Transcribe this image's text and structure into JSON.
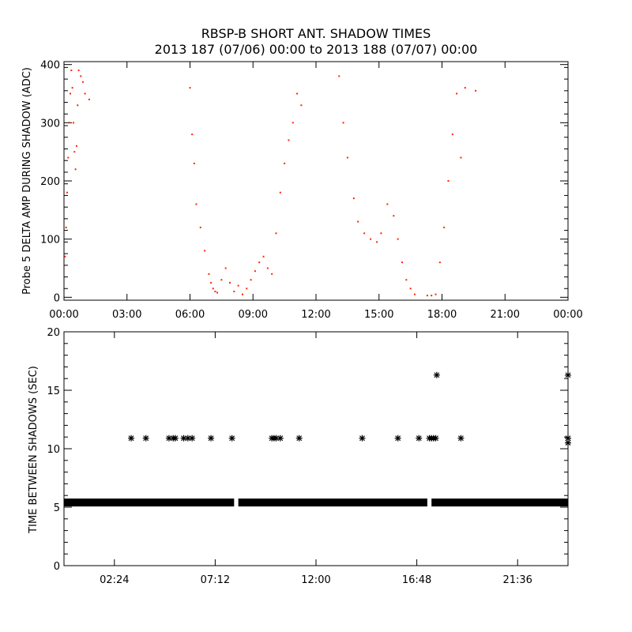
{
  "title": {
    "line1": "RBSP-B SHORT ANT. SHADOW TIMES",
    "line2": "2013 187 (07/06) 00:00 to 2013 188 (07/07) 00:00"
  },
  "colors": {
    "top_points": "#ff2200",
    "bottom_points": "#000000",
    "axes": "#000000"
  },
  "chart_data": [
    {
      "type": "scatter",
      "ylabel": "Probe 5 DELTA AMP DURING SHADOW (ADC)",
      "xlabel": "",
      "x_unit": "hours since 2013-07-06 00:00",
      "xlim": [
        0,
        24
      ],
      "ylim": [
        -5,
        405
      ],
      "x_ticks": [
        {
          "v": 0,
          "label": "00:00"
        },
        {
          "v": 3,
          "label": "03:00"
        },
        {
          "v": 6,
          "label": "06:00"
        },
        {
          "v": 9,
          "label": "09:00"
        },
        {
          "v": 12,
          "label": "12:00"
        },
        {
          "v": 15,
          "label": "15:00"
        },
        {
          "v": 18,
          "label": "18:00"
        },
        {
          "v": 21,
          "label": "21:00"
        },
        {
          "v": 24,
          "label": "00:00"
        }
      ],
      "y_ticks": [
        {
          "v": 0,
          "label": "0"
        },
        {
          "v": 100,
          "label": "100"
        },
        {
          "v": 200,
          "label": "200"
        },
        {
          "v": 300,
          "label": "300"
        },
        {
          "v": 400,
          "label": "400"
        }
      ],
      "series": [
        {
          "name": "",
          "color": "#ff2200",
          "x": [
            0.05,
            0.1,
            0.15,
            0.2,
            0.25,
            0.3,
            0.35,
            0.4,
            0.45,
            0.5,
            0.55,
            0.6,
            0.65,
            0.7,
            0.8,
            0.9,
            1.0,
            1.2,
            6.0,
            6.1,
            6.2,
            6.3,
            6.5,
            6.7,
            6.9,
            7.0,
            7.1,
            7.2,
            7.3,
            7.5,
            7.7,
            7.9,
            8.1,
            8.3,
            8.5,
            8.7,
            8.9,
            9.1,
            9.3,
            9.5,
            9.7,
            9.9,
            10.1,
            10.3,
            10.5,
            10.7,
            10.9,
            11.1,
            11.3,
            13.1,
            13.3,
            13.5,
            13.8,
            14.0,
            14.3,
            14.6,
            14.9,
            15.1,
            15.4,
            15.7,
            15.9,
            16.1,
            16.3,
            16.5,
            16.7,
            17.3,
            17.5,
            17.7,
            17.9,
            18.1,
            18.3,
            18.5,
            18.7,
            18.9,
            19.1,
            19.6
          ],
          "y": [
            70,
            120,
            180,
            240,
            300,
            350,
            390,
            360,
            300,
            250,
            220,
            260,
            330,
            390,
            380,
            370,
            350,
            340,
            360,
            280,
            230,
            160,
            120,
            80,
            40,
            25,
            15,
            10,
            8,
            30,
            50,
            25,
            10,
            20,
            5,
            15,
            30,
            45,
            60,
            70,
            50,
            40,
            110,
            180,
            230,
            270,
            300,
            350,
            330,
            380,
            300,
            240,
            170,
            130,
            110,
            100,
            95,
            110,
            160,
            140,
            100,
            60,
            30,
            15,
            5,
            3,
            3,
            5,
            60,
            120,
            200,
            280,
            350,
            240,
            360,
            355
          ]
        }
      ]
    },
    {
      "type": "scatter",
      "ylabel": "TIME BETWEEN SHADOWS (SEC)",
      "xlabel": "",
      "x_unit": "hours since 2013-07-06 00:00",
      "xlim": [
        0,
        24
      ],
      "ylim": [
        0,
        20
      ],
      "x_ticks": [
        {
          "v": 2.4,
          "label": "02:24"
        },
        {
          "v": 7.2,
          "label": "07:12"
        },
        {
          "v": 12.0,
          "label": "12:00"
        },
        {
          "v": 16.8,
          "label": "16:48"
        },
        {
          "v": 21.6,
          "label": "21:36"
        }
      ],
      "y_ticks": [
        {
          "v": 0,
          "label": "0"
        },
        {
          "v": 5,
          "label": "5"
        },
        {
          "v": 10,
          "label": "10"
        },
        {
          "v": 15,
          "label": "15"
        },
        {
          "v": 20,
          "label": "20"
        }
      ],
      "baseline": {
        "value": 5.4,
        "segments": [
          [
            0,
            8.1
          ],
          [
            8.3,
            17.3
          ],
          [
            17.5,
            24
          ]
        ]
      },
      "series": [
        {
          "name": "",
          "color": "#000000",
          "x": [
            3.2,
            3.9,
            5.0,
            5.2,
            5.3,
            5.7,
            5.9,
            6.1,
            7.0,
            8.0,
            9.9,
            10.0,
            10.1,
            10.3,
            11.2,
            14.2,
            15.9,
            16.9,
            17.4,
            17.5,
            17.6,
            17.7,
            17.75,
            18.9,
            24.0,
            24.0,
            24.0
          ],
          "y": [
            10.9,
            10.9,
            10.9,
            10.9,
            10.9,
            10.9,
            10.9,
            10.9,
            10.9,
            10.9,
            10.9,
            10.9,
            10.9,
            10.9,
            10.9,
            10.9,
            10.9,
            10.9,
            10.9,
            10.9,
            10.9,
            10.9,
            16.3,
            10.9,
            16.3,
            10.9,
            10.5
          ]
        }
      ]
    }
  ]
}
